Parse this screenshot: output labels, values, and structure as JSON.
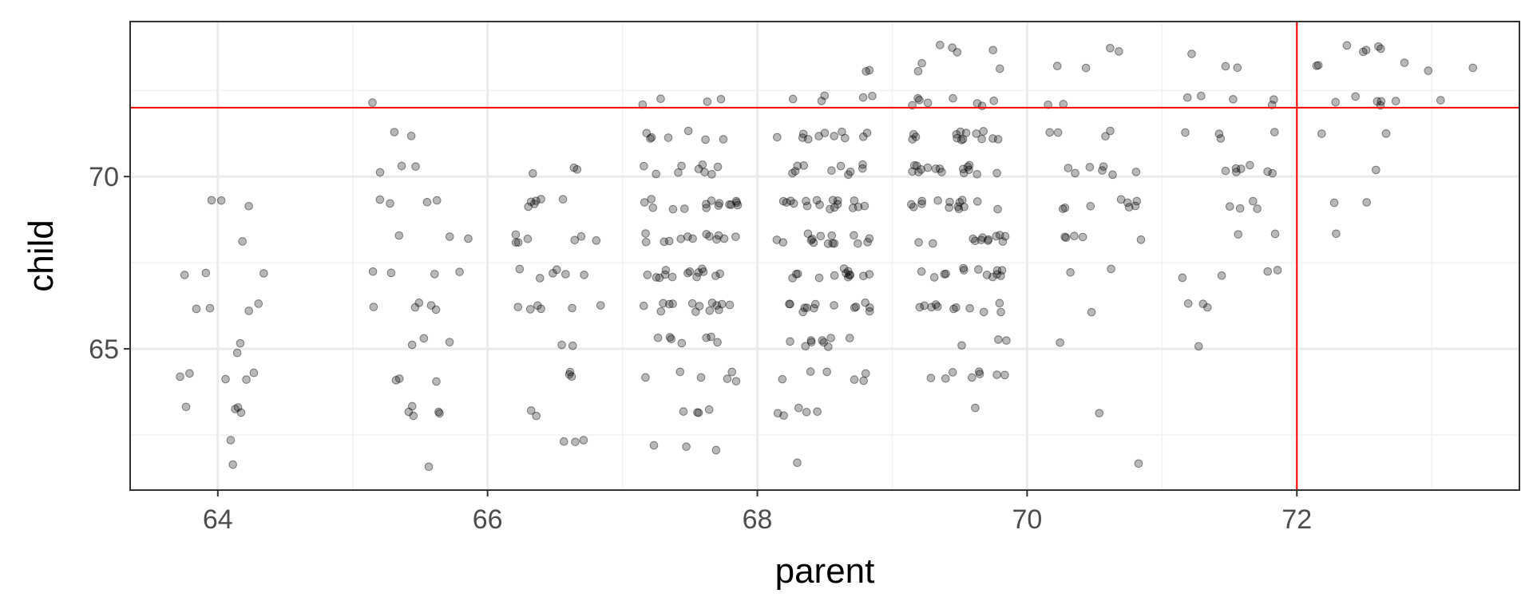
{
  "chart_data": {
    "type": "scatter",
    "title": "",
    "xlabel": "parent",
    "ylabel": "child",
    "xlim": [
      63.35,
      73.65
    ],
    "ylim": [
      60.9,
      74.5
    ],
    "x_ticks": [
      64,
      66,
      68,
      70,
      72
    ],
    "y_ticks": [
      65,
      70
    ],
    "x_tick_labels": [
      "64",
      "66",
      "68",
      "70",
      "72"
    ],
    "y_tick_labels": [
      "65",
      "70"
    ],
    "grid": true,
    "reference_lines": {
      "vertical_x": 72,
      "horizontal_y": 72,
      "color": "#ff0000"
    },
    "point_color": "#000000",
    "point_alpha": 0.3,
    "jittered": true,
    "groups": [
      {
        "parent": 64.0,
        "children": [
          61.7,
          62.2,
          63.2,
          63.2,
          63.2,
          63.2,
          64.2,
          64.2,
          64.2,
          64.2,
          64.2,
          65.2,
          66.2,
          66.2,
          66.2,
          66.2,
          67.2,
          67.2,
          67.2,
          68.2,
          69.2,
          69.2,
          69.2,
          65.0
        ]
      },
      {
        "parent": 65.5,
        "children": [
          61.7,
          63.2,
          63.2,
          63.2,
          63.2,
          63.2,
          64.2,
          64.2,
          64.2,
          65.2,
          65.2,
          65.2,
          66.2,
          66.2,
          66.2,
          66.2,
          66.2,
          67.2,
          67.2,
          67.2,
          67.2,
          68.2,
          68.2,
          68.2,
          69.2,
          69.2,
          69.2,
          69.2,
          70.2,
          70.2,
          70.2,
          71.2,
          71.2,
          72.2
        ]
      },
      {
        "parent": 66.5,
        "children": [
          62.2,
          62.2,
          62.2,
          63.2,
          63.2,
          64.2,
          64.2,
          64.2,
          65.2,
          65.2,
          66.2,
          66.2,
          66.2,
          66.2,
          66.2,
          66.2,
          67.2,
          67.2,
          67.2,
          67.2,
          67.2,
          67.2,
          68.2,
          68.2,
          68.2,
          68.2,
          68.2,
          68.2,
          68.2,
          69.2,
          69.2,
          69.2,
          69.2,
          69.2,
          69.2,
          70.2,
          70.2,
          70.2
        ]
      },
      {
        "parent": 67.5,
        "children": [
          62.2,
          62.2,
          62.2,
          63.2,
          63.2,
          63.2,
          63.2,
          64.2,
          64.2,
          64.2,
          64.2,
          64.2,
          64.2,
          65.2,
          65.2,
          65.2,
          65.2,
          65.2,
          65.2,
          65.2,
          66.2,
          66.2,
          66.2,
          66.2,
          66.2,
          66.2,
          66.2,
          66.2,
          66.2,
          66.2,
          66.2,
          66.2,
          66.2,
          66.2,
          67.2,
          67.2,
          67.2,
          67.2,
          67.2,
          67.2,
          67.2,
          67.2,
          67.2,
          67.2,
          67.2,
          67.2,
          67.2,
          67.2,
          68.2,
          68.2,
          68.2,
          68.2,
          68.2,
          68.2,
          68.2,
          68.2,
          68.2,
          68.2,
          68.2,
          68.2,
          68.2,
          69.2,
          69.2,
          69.2,
          69.2,
          69.2,
          69.2,
          69.2,
          69.2,
          69.2,
          69.2,
          69.2,
          69.2,
          69.2,
          69.2,
          69.2,
          70.2,
          70.2,
          70.2,
          70.2,
          70.2,
          70.2,
          70.2,
          70.2,
          70.2,
          71.2,
          71.2,
          71.2,
          71.2,
          71.2,
          71.2,
          71.2,
          72.2,
          72.2,
          72.2,
          72.2
        ]
      },
      {
        "parent": 68.5,
        "children": [
          61.7,
          63.2,
          63.2,
          63.2,
          63.2,
          63.2,
          64.2,
          64.2,
          64.2,
          64.2,
          64.2,
          64.2,
          65.2,
          65.2,
          65.2,
          65.2,
          65.2,
          65.2,
          65.2,
          65.2,
          65.2,
          66.2,
          66.2,
          66.2,
          66.2,
          66.2,
          66.2,
          66.2,
          66.2,
          66.2,
          66.2,
          66.2,
          66.2,
          66.2,
          67.2,
          67.2,
          67.2,
          67.2,
          67.2,
          67.2,
          67.2,
          67.2,
          67.2,
          67.2,
          67.2,
          67.2,
          67.2,
          68.2,
          68.2,
          68.2,
          68.2,
          68.2,
          68.2,
          68.2,
          68.2,
          68.2,
          68.2,
          68.2,
          68.2,
          68.2,
          68.2,
          68.2,
          69.2,
          69.2,
          69.2,
          69.2,
          69.2,
          69.2,
          69.2,
          69.2,
          69.2,
          69.2,
          69.2,
          69.2,
          69.2,
          69.2,
          69.2,
          69.2,
          69.2,
          70.2,
          70.2,
          70.2,
          70.2,
          70.2,
          70.2,
          70.2,
          70.2,
          70.2,
          70.2,
          71.2,
          71.2,
          71.2,
          71.2,
          71.2,
          71.2,
          71.2,
          71.2,
          71.2,
          71.2,
          71.2,
          72.2,
          72.2,
          72.2,
          72.2,
          72.2,
          73.2,
          73.2
        ]
      },
      {
        "parent": 69.5,
        "children": [
          63.2,
          64.2,
          64.2,
          64.2,
          64.2,
          64.2,
          64.2,
          64.2,
          64.2,
          65.2,
          65.2,
          65.2,
          66.2,
          66.2,
          66.2,
          66.2,
          66.2,
          66.2,
          66.2,
          66.2,
          66.2,
          66.2,
          66.2,
          67.2,
          67.2,
          67.2,
          67.2,
          67.2,
          67.2,
          67.2,
          67.2,
          67.2,
          67.2,
          67.2,
          67.2,
          67.2,
          68.2,
          68.2,
          68.2,
          68.2,
          68.2,
          68.2,
          68.2,
          68.2,
          68.2,
          68.2,
          68.2,
          68.2,
          69.2,
          69.2,
          69.2,
          69.2,
          69.2,
          69.2,
          69.2,
          69.2,
          69.2,
          69.2,
          69.2,
          69.2,
          69.2,
          69.2,
          70.2,
          70.2,
          70.2,
          70.2,
          70.2,
          70.2,
          70.2,
          70.2,
          70.2,
          70.2,
          70.2,
          70.2,
          70.2,
          70.2,
          70.2,
          70.2,
          71.2,
          71.2,
          71.2,
          71.2,
          71.2,
          71.2,
          71.2,
          71.2,
          71.2,
          71.2,
          71.2,
          71.2,
          71.2,
          71.2,
          72.2,
          72.2,
          72.2,
          72.2,
          72.2,
          72.2,
          72.2,
          72.2,
          73.2,
          73.2,
          73.2,
          73.7,
          73.7,
          73.7,
          73.7
        ]
      },
      {
        "parent": 70.5,
        "children": [
          61.7,
          63.2,
          65.2,
          66.2,
          67.2,
          67.2,
          68.2,
          68.2,
          68.2,
          68.2,
          68.2,
          69.2,
          69.2,
          69.2,
          69.2,
          69.2,
          69.2,
          69.2,
          69.2,
          70.2,
          70.2,
          70.2,
          70.2,
          70.2,
          70.2,
          70.2,
          71.2,
          71.2,
          71.2,
          71.2,
          72.2,
          72.2,
          73.2,
          73.2,
          73.7,
          73.7
        ]
      },
      {
        "parent": 71.5,
        "children": [
          65.2,
          66.2,
          66.2,
          66.2,
          67.2,
          67.2,
          67.2,
          67.2,
          68.2,
          68.2,
          69.2,
          69.2,
          69.2,
          69.2,
          70.2,
          70.2,
          70.2,
          70.2,
          70.2,
          70.2,
          70.2,
          71.2,
          71.2,
          71.2,
          71.2,
          72.2,
          72.2,
          72.2,
          72.2,
          72.2,
          73.2,
          73.2,
          73.7
        ]
      },
      {
        "parent": 72.5,
        "children": [
          68.2,
          69.2,
          69.2,
          70.2,
          71.2,
          71.2,
          72.2,
          72.2,
          72.2,
          72.2,
          72.2,
          72.2,
          73.2,
          73.2,
          73.2,
          73.7,
          73.7,
          73.7,
          73.7,
          73.7
        ]
      },
      {
        "parent": 73.0,
        "children": [
          72.2,
          73.2,
          73.2
        ]
      }
    ]
  }
}
